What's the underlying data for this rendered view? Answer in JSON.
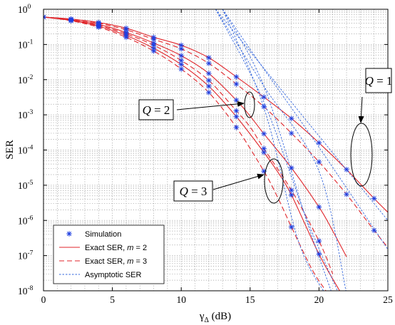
{
  "chart_data": {
    "type": "line",
    "xlabel": "γΔ (dB)",
    "ylabel": "SER",
    "xlim": [
      0,
      25
    ],
    "ylim": [
      1e-08,
      1
    ],
    "yscale": "log",
    "grid": true,
    "x_ticks": [
      0,
      5,
      10,
      15,
      20,
      25
    ],
    "y_tick_exponents": [
      0,
      -1,
      -2,
      -3,
      -4,
      -5,
      -6,
      -7,
      -8
    ],
    "legend_position": "bottom-left",
    "legend_entries": [
      {
        "label": "Simulation",
        "style": "marker"
      },
      {
        "label": "Exact SER, m = 2",
        "style": "solid"
      },
      {
        "label": "Exact SER, m = 3",
        "style": "dashed"
      },
      {
        "label": "Asymptotic SER",
        "style": "dotted"
      }
    ],
    "colors": {
      "simulation": "#1f3fe0",
      "exact": "#e0262b",
      "asymptotic": "#3366dd"
    },
    "series": [
      {
        "kind": "exact",
        "Q": 1,
        "m": 2,
        "x": [
          0,
          2,
          4,
          6,
          8,
          10,
          12,
          14,
          16,
          18,
          20,
          22,
          24,
          25
        ],
        "values": [
          0.6,
          0.53,
          0.42,
          0.29,
          0.16,
          0.095,
          0.042,
          0.012,
          0.0032,
          0.00079,
          0.00016,
          2.8e-05,
          4.2e-06,
          1.7e-06
        ]
      },
      {
        "kind": "exact",
        "Q": 1,
        "m": 3,
        "x": [
          0,
          2,
          4,
          6,
          8,
          10,
          12,
          14,
          16,
          18,
          20,
          22,
          24,
          25
        ],
        "values": [
          0.6,
          0.52,
          0.4,
          0.26,
          0.14,
          0.075,
          0.029,
          0.0075,
          0.0017,
          0.0003,
          4.6e-05,
          5.5e-06,
          5.2e-07,
          1.7e-07
        ]
      },
      {
        "kind": "exact",
        "Q": 2,
        "m": 2,
        "x": [
          0,
          2,
          4,
          6,
          8,
          10,
          12,
          14,
          15,
          16,
          18,
          20,
          21,
          22
        ],
        "values": [
          0.6,
          0.5,
          0.37,
          0.22,
          0.11,
          0.048,
          0.015,
          0.0026,
          0.00092,
          0.00029,
          3.1e-05,
          2.4e-06,
          5e-07,
          9.2e-08
        ]
      },
      {
        "kind": "exact",
        "Q": 2,
        "m": 3,
        "x": [
          0,
          2,
          4,
          6,
          8,
          10,
          12,
          14,
          15,
          16,
          18,
          20,
          21
        ],
        "values": [
          0.6,
          0.49,
          0.35,
          0.2,
          0.095,
          0.035,
          0.0095,
          0.0013,
          0.00045,
          0.00011,
          7.2e-06,
          2.6e-07,
          3e-08
        ]
      },
      {
        "kind": "exact",
        "Q": 3,
        "m": 2,
        "x": [
          0,
          2,
          4,
          6,
          8,
          10,
          12,
          14,
          16,
          17,
          18,
          20,
          21.5
        ],
        "values": [
          0.6,
          0.48,
          0.33,
          0.18,
          0.078,
          0.027,
          0.0065,
          0.00089,
          8.6e-05,
          2.4e-05,
          5.3e-06,
          1.1e-07,
          1e-08
        ]
      },
      {
        "kind": "exact",
        "Q": 3,
        "m": 3,
        "x": [
          0,
          2,
          4,
          6,
          8,
          10,
          12,
          14,
          16,
          17,
          18,
          19.5,
          20.5
        ],
        "values": [
          0.6,
          0.47,
          0.31,
          0.16,
          0.065,
          0.02,
          0.0043,
          0.00044,
          2.5e-05,
          4.5e-06,
          6.5e-07,
          4e-08,
          1e-08
        ]
      },
      {
        "kind": "asymptotic",
        "Q": 1,
        "m": 2,
        "x": [
          12.5,
          16,
          20,
          25
        ],
        "values": [
          1,
          0.021,
          0.00025,
          1e-06
        ]
      },
      {
        "kind": "asymptotic",
        "Q": 1,
        "m": 3,
        "x": [
          13,
          16,
          20,
          25
        ],
        "values": [
          1,
          0.02,
          0.00012,
          1.5e-07
        ]
      },
      {
        "kind": "asymptotic",
        "Q": 2,
        "m": 2,
        "x": [
          12.5,
          16,
          20,
          22
        ],
        "values": [
          1,
          0.0065,
          2.5e-05,
          8.2e-09
        ]
      },
      {
        "kind": "asymptotic",
        "Q": 2,
        "m": 3,
        "x": [
          13,
          16,
          19,
          21
        ],
        "values": [
          1,
          0.0065,
          1.3e-06,
          7.3e-09
        ]
      },
      {
        "kind": "asymptotic",
        "Q": 3,
        "m": 2,
        "x": [
          12.5,
          16,
          19,
          21.5
        ],
        "values": [
          1,
          0.0023,
          1.4e-06,
          7.2e-09
        ]
      },
      {
        "kind": "asymptotic",
        "Q": 3,
        "m": 3,
        "x": [
          13,
          16,
          18.5,
          20.5
        ],
        "values": [
          1,
          0.0016,
          2.6e-07,
          7.6e-09
        ]
      },
      {
        "kind": "simulation",
        "Q": 1,
        "m": 2,
        "x": [
          0,
          2,
          4,
          6,
          8,
          10,
          12,
          14,
          16,
          18,
          20,
          22,
          24
        ],
        "values": [
          0.6,
          0.53,
          0.42,
          0.29,
          0.16,
          0.095,
          0.042,
          0.012,
          0.0032,
          0.00079,
          0.00016,
          2.8e-05,
          4.2e-06
        ]
      },
      {
        "kind": "simulation",
        "Q": 1,
        "m": 3,
        "x": [
          0,
          2,
          4,
          6,
          8,
          10,
          12,
          14,
          16,
          18,
          20,
          22,
          24
        ],
        "values": [
          0.6,
          0.52,
          0.4,
          0.26,
          0.14,
          0.075,
          0.029,
          0.0075,
          0.0017,
          0.0003,
          4.6e-05,
          5.5e-06,
          5.2e-07
        ]
      },
      {
        "kind": "simulation",
        "Q": 2,
        "m": 2,
        "x": [
          0,
          2,
          4,
          6,
          8,
          10,
          12,
          14,
          16,
          18,
          20
        ],
        "values": [
          0.6,
          0.5,
          0.37,
          0.22,
          0.11,
          0.048,
          0.015,
          0.0026,
          0.00029,
          3.1e-05,
          2.4e-06
        ]
      },
      {
        "kind": "simulation",
        "Q": 2,
        "m": 3,
        "x": [
          0,
          2,
          4,
          6,
          8,
          10,
          12,
          14,
          16,
          18,
          20
        ],
        "values": [
          0.6,
          0.49,
          0.35,
          0.2,
          0.095,
          0.035,
          0.0095,
          0.0013,
          0.00011,
          7.2e-06,
          2.6e-07
        ]
      },
      {
        "kind": "simulation",
        "Q": 3,
        "m": 2,
        "x": [
          0,
          2,
          4,
          6,
          8,
          10,
          12,
          14,
          16,
          18,
          20
        ],
        "values": [
          0.6,
          0.48,
          0.33,
          0.18,
          0.078,
          0.027,
          0.0065,
          0.00089,
          8.6e-05,
          5.3e-06,
          1.1e-07
        ]
      },
      {
        "kind": "simulation",
        "Q": 3,
        "m": 3,
        "x": [
          0,
          2,
          4,
          6,
          8,
          10,
          12,
          14,
          16,
          18
        ],
        "values": [
          0.6,
          0.47,
          0.31,
          0.16,
          0.065,
          0.02,
          0.0043,
          0.00044,
          2.5e-05,
          6.5e-07
        ]
      }
    ],
    "annotations": [
      {
        "text": "Q = 1",
        "target_x": 23,
        "target_y": 6e-05
      },
      {
        "text": "Q = 2",
        "target_x": 14.8,
        "target_y": 0.001
      },
      {
        "text": "Q = 3",
        "target_x": 16.5,
        "target_y": 1.2e-05
      }
    ]
  }
}
